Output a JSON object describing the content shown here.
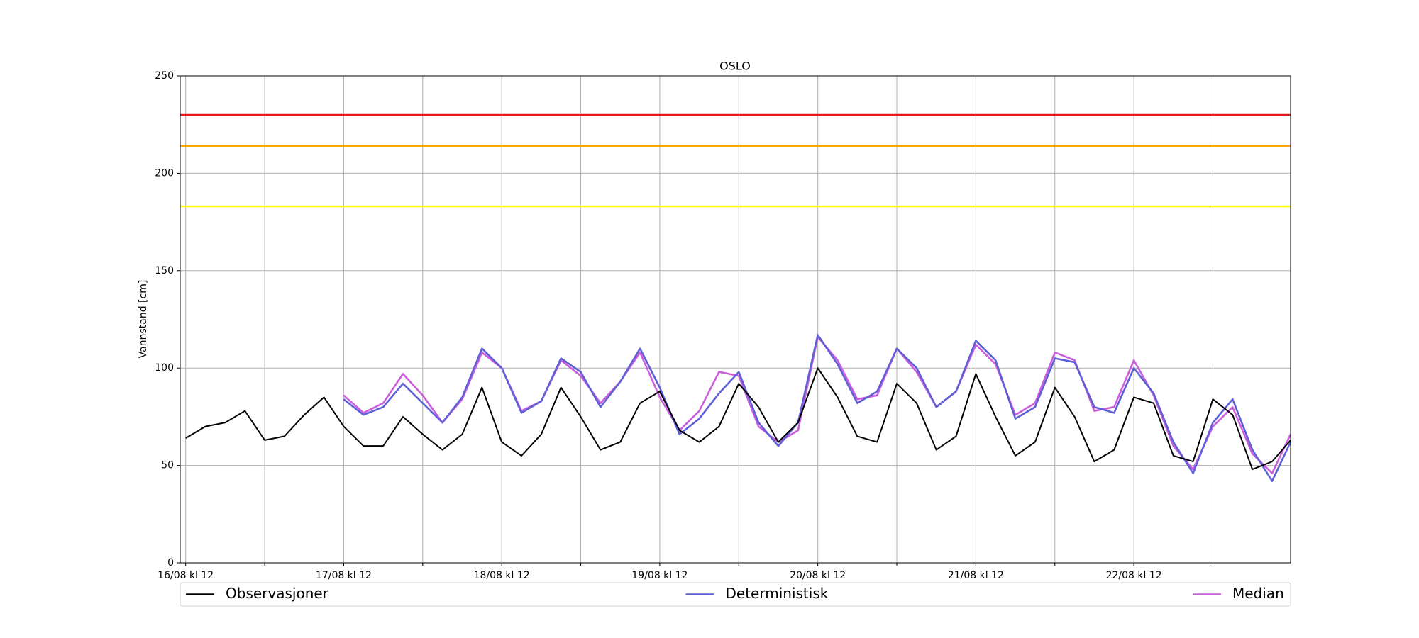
{
  "chart_data": {
    "type": "line",
    "title": "OSLO",
    "ylabel": "Vannstand [cm]",
    "x": [
      0,
      3,
      6,
      9,
      12,
      15,
      18,
      21,
      24,
      27,
      30,
      33,
      36,
      39,
      42,
      45,
      48,
      51,
      54,
      57,
      60,
      63,
      66,
      69,
      72,
      75,
      78,
      81,
      84,
      87,
      90,
      93,
      96,
      99,
      102,
      105,
      108,
      111,
      114,
      117,
      120,
      123,
      126,
      129,
      132,
      135,
      138,
      141,
      144,
      147,
      150,
      153,
      156,
      159,
      162,
      165,
      167.8
    ],
    "series": [
      {
        "name": "Observasjoner",
        "color": "#000000",
        "values": [
          64,
          70,
          72,
          78,
          63,
          65,
          76,
          85,
          70,
          60,
          60,
          75,
          66,
          58,
          66,
          90,
          62,
          55,
          66,
          90,
          75,
          58,
          62,
          82,
          88,
          68,
          62,
          70,
          92,
          80,
          62,
          72,
          100,
          85,
          65,
          62,
          92,
          82,
          58,
          65,
          97,
          75,
          55,
          62,
          90,
          75,
          52,
          58,
          85,
          82,
          55,
          52,
          84,
          76,
          48,
          52,
          63
        ]
      },
      {
        "name": "Deterministisk",
        "color": "#5f5fd8",
        "values": [
          null,
          null,
          null,
          null,
          null,
          null,
          null,
          null,
          84,
          76,
          80,
          92,
          82,
          72,
          85,
          110,
          100,
          77,
          83,
          105,
          98,
          80,
          93,
          110,
          90,
          66,
          74,
          87,
          98,
          72,
          60,
          72,
          117,
          102,
          82,
          88,
          110,
          100,
          80,
          88,
          114,
          104,
          74,
          80,
          105,
          103,
          80,
          77,
          100,
          87,
          62,
          46,
          72,
          84,
          58,
          42,
          62
        ]
      },
      {
        "name": "Median",
        "color": "#cc5ede",
        "values": [
          null,
          null,
          null,
          null,
          null,
          null,
          null,
          null,
          86,
          77,
          82,
          97,
          86,
          72,
          84,
          108,
          100,
          78,
          83,
          104,
          96,
          82,
          93,
          108,
          85,
          68,
          78,
          98,
          96,
          70,
          62,
          68,
          116,
          104,
          84,
          86,
          110,
          98,
          80,
          88,
          112,
          102,
          76,
          82,
          108,
          104,
          78,
          80,
          104,
          86,
          60,
          48,
          70,
          80,
          56,
          46,
          66
        ]
      }
    ],
    "thresholds": [
      {
        "value": 230,
        "color": "#e31a1c"
      },
      {
        "value": 214,
        "color": "#ffa500"
      },
      {
        "value": 183,
        "color": "#ffff00"
      }
    ],
    "xlim": [
      -0.83,
      167.8
    ],
    "xticks": [
      {
        "value": 0,
        "label": "16/08 kl 12"
      },
      {
        "value": 24,
        "label": "17/08 kl 12"
      },
      {
        "value": 48,
        "label": "18/08 kl 12"
      },
      {
        "value": 72,
        "label": "19/08 kl 12"
      },
      {
        "value": 96,
        "label": "20/08 kl 12"
      },
      {
        "value": 120,
        "label": "21/08 kl 12"
      },
      {
        "value": 144,
        "label": "22/08 kl 12"
      }
    ],
    "xminorticks": [
      12,
      36,
      60,
      84,
      108,
      132,
      156
    ],
    "ylim": [
      0,
      250
    ],
    "yticks": [
      0,
      50,
      100,
      150,
      200,
      250
    ],
    "grid": true,
    "legend": "bottom"
  }
}
